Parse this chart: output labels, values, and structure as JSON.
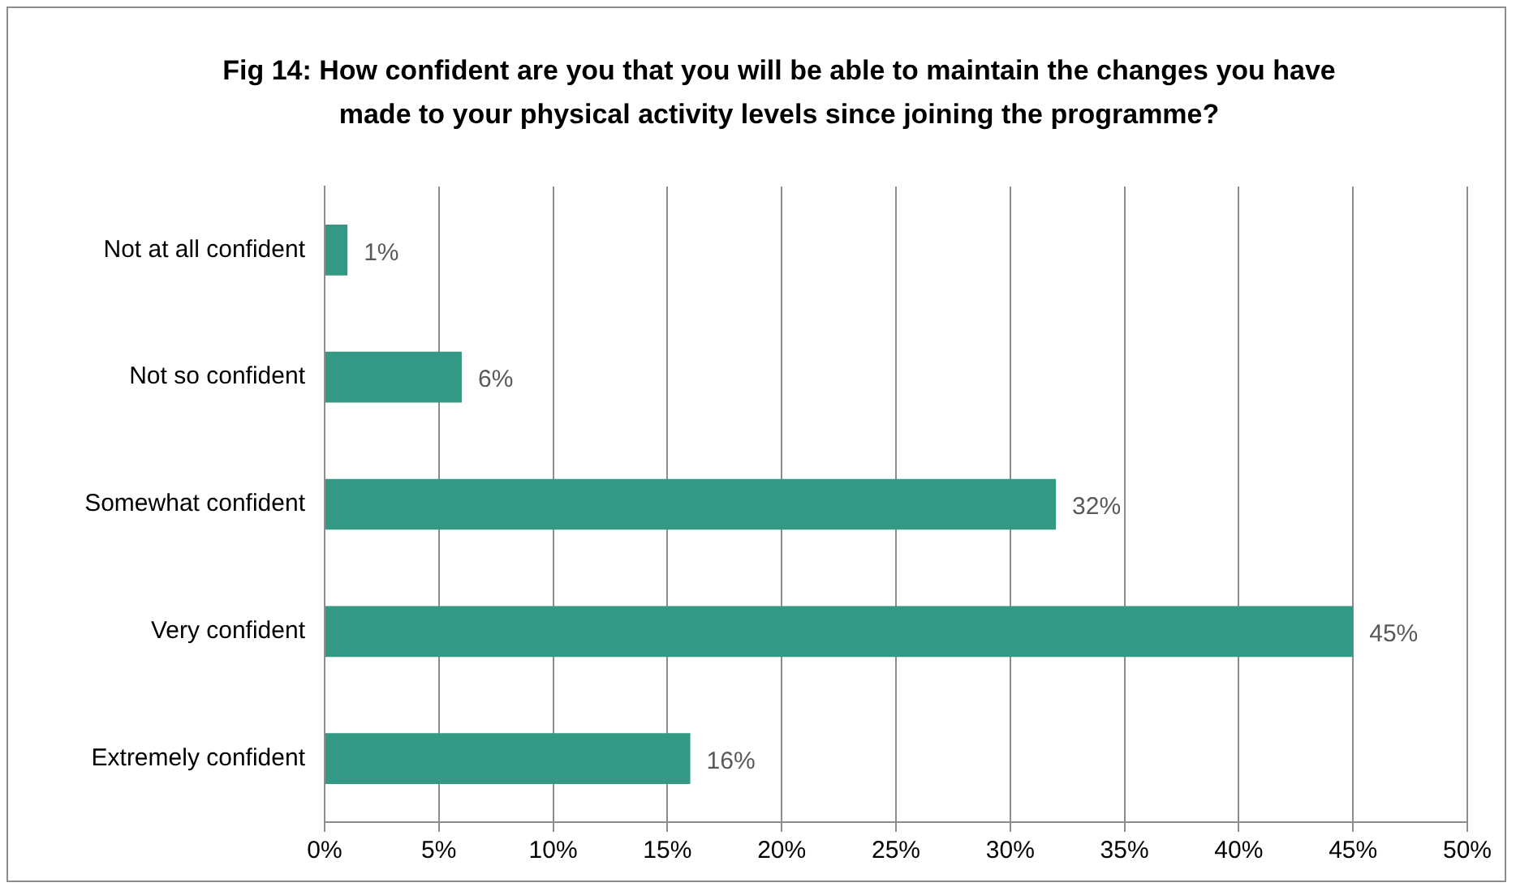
{
  "chart_data": {
    "type": "bar",
    "orientation": "horizontal",
    "title": "Fig 14: How confident are you that you will be able to maintain the changes you have made to your physical activity levels since joining the programme?",
    "categories": [
      "Not at all confident",
      "Not so confident",
      "Somewhat confident",
      "Very confident",
      "Extremely confident"
    ],
    "values": [
      1,
      6,
      32,
      45,
      16
    ],
    "value_labels": [
      "1%",
      "6%",
      "32%",
      "45%",
      "16%"
    ],
    "color": "#339985",
    "xlim": [
      0,
      50
    ],
    "xticks": [
      {
        "value": 0,
        "label": "0%"
      },
      {
        "value": 5,
        "label": "5%"
      },
      {
        "value": 10,
        "label": "10%"
      },
      {
        "value": 15,
        "label": "15%"
      },
      {
        "value": 20,
        "label": "20%"
      },
      {
        "value": 25,
        "label": "25%"
      },
      {
        "value": 30,
        "label": "30%"
      },
      {
        "value": 35,
        "label": "35%"
      },
      {
        "value": 40,
        "label": "40%"
      },
      {
        "value": 45,
        "label": "45%"
      },
      {
        "value": 50,
        "label": "50%"
      }
    ],
    "grid": "x"
  }
}
